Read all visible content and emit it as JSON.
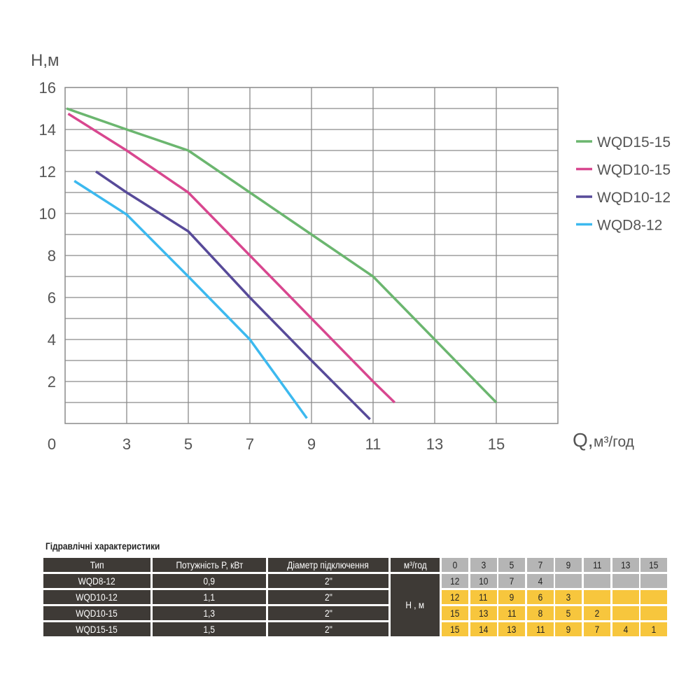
{
  "chart_data": {
    "type": "line",
    "ylabel": "H,м",
    "xlabel_main": "Q,",
    "xlabel_unit": "м³/год",
    "origin_label": "0",
    "x_ticks": [
      3,
      5,
      7,
      9,
      11,
      13,
      15
    ],
    "x_range": [
      1,
      17
    ],
    "y_ticks": [
      2,
      4,
      6,
      8,
      10,
      12,
      14,
      16
    ],
    "y_range": [
      0,
      16
    ],
    "grid": true,
    "legend_placement": "right",
    "series": [
      {
        "name": "WQD15-15",
        "color": "#6bb66f",
        "points": [
          [
            1.05,
            15
          ],
          [
            3,
            14
          ],
          [
            5,
            13
          ],
          [
            7,
            11
          ],
          [
            9,
            9
          ],
          [
            11,
            7
          ],
          [
            13,
            4
          ],
          [
            15,
            1
          ]
        ]
      },
      {
        "name": "WQD10-15",
        "color": "#d8478f",
        "points": [
          [
            1.1,
            14.75
          ],
          [
            3,
            13
          ],
          [
            5,
            11
          ],
          [
            7,
            8
          ],
          [
            9,
            5
          ],
          [
            11,
            2
          ],
          [
            11.7,
            1
          ]
        ]
      },
      {
        "name": "WQD10-12",
        "color": "#574a99",
        "points": [
          [
            2,
            12
          ],
          [
            3,
            11
          ],
          [
            5,
            9.15
          ],
          [
            7,
            6
          ],
          [
            9,
            3
          ],
          [
            10.9,
            0.2
          ]
        ]
      },
      {
        "name": "WQD8-12",
        "color": "#3cb9ef",
        "points": [
          [
            1.3,
            11.55
          ],
          [
            3,
            9.95
          ],
          [
            5,
            7
          ],
          [
            7,
            4
          ],
          [
            8.85,
            0.25
          ]
        ]
      }
    ]
  },
  "table": {
    "title": "Гідравлічні характеристики",
    "headers": [
      "Тип",
      "Потужність P, кВт",
      "Діаметр підключення",
      "м³/год"
    ],
    "flow_values": [
      "0",
      "3",
      "5",
      "7",
      "9",
      "11",
      "13",
      "15"
    ],
    "head_label": "H , м",
    "rows": [
      {
        "type": "WQD8-12",
        "power": "0,9",
        "diameter": "2\"",
        "heads": [
          "12",
          "10",
          "7",
          "4",
          "",
          "",
          "",
          ""
        ],
        "style": "gray"
      },
      {
        "type": "WQD10-12",
        "power": "1,1",
        "diameter": "2\"",
        "heads": [
          "12",
          "11",
          "9",
          "6",
          "3",
          "",
          "",
          ""
        ],
        "style": "yellow"
      },
      {
        "type": "WQD10-15",
        "power": "1,3",
        "diameter": "2\"",
        "heads": [
          "15",
          "13",
          "11",
          "8",
          "5",
          "2",
          "",
          ""
        ],
        "style": "yellow"
      },
      {
        "type": "WQD15-15",
        "power": "1,5",
        "diameter": "2\"",
        "heads": [
          "15",
          "14",
          "13",
          "11",
          "9",
          "7",
          "4",
          "1"
        ],
        "style": "yellow"
      }
    ]
  }
}
